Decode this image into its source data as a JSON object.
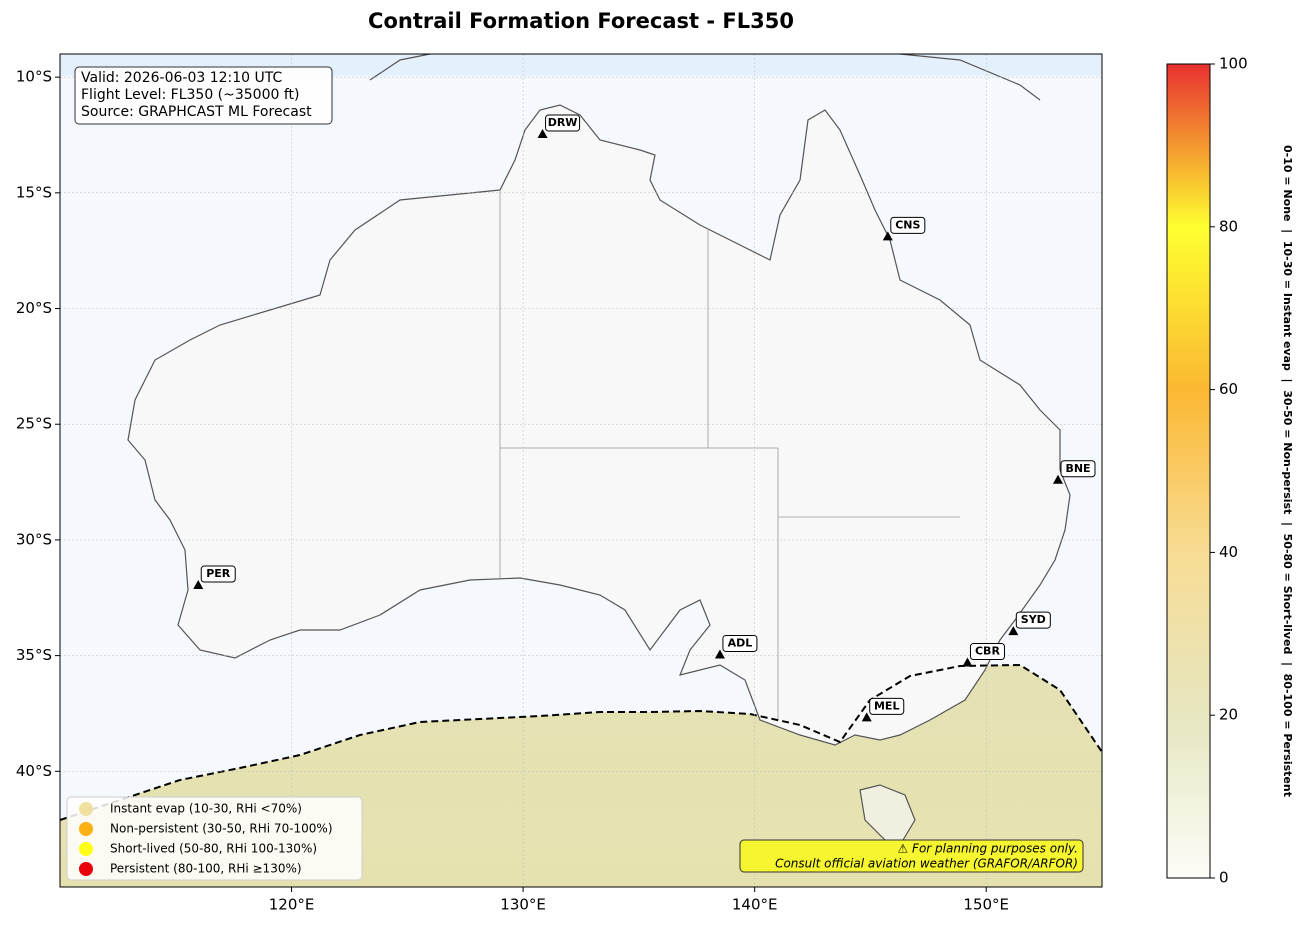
{
  "title": "Contrail Formation Forecast - FL350",
  "map": {
    "lonlim": [
      110,
      155
    ],
    "latlim": [
      -45,
      -9
    ],
    "lon_ticks": [
      {
        "value": 120,
        "label": "120°E"
      },
      {
        "value": 130,
        "label": "130°E"
      },
      {
        "value": 140,
        "label": "140°E"
      },
      {
        "value": 150,
        "label": "150°E"
      }
    ],
    "lat_ticks": [
      {
        "value": -10,
        "label": "10°S"
      },
      {
        "value": -15,
        "label": "15°S"
      },
      {
        "value": -20,
        "label": "20°S"
      },
      {
        "value": -25,
        "label": "25°S"
      },
      {
        "value": -30,
        "label": "30°S"
      },
      {
        "value": -35,
        "label": "35°S"
      },
      {
        "value": -40,
        "label": "40°S"
      }
    ]
  },
  "info": [
    "Valid: 2026-06-03 12:10 UTC",
    "Flight Level: FL350 (~35000 ft)",
    "Source: GRAPHCAST ML Forecast"
  ],
  "airports": [
    {
      "code": "DRW",
      "lon": 130.84,
      "lat": -12.46
    },
    {
      "code": "CNS",
      "lon": 145.75,
      "lat": -16.88
    },
    {
      "code": "BNE",
      "lon": 153.1,
      "lat": -27.4
    },
    {
      "code": "PER",
      "lon": 115.97,
      "lat": -31.95
    },
    {
      "code": "ADL",
      "lon": 138.5,
      "lat": -34.95
    },
    {
      "code": "SYD",
      "lon": 151.17,
      "lat": -33.94
    },
    {
      "code": "CBR",
      "lon": 149.19,
      "lat": -35.3
    },
    {
      "code": "MEL",
      "lon": 144.84,
      "lat": -37.67
    }
  ],
  "legend": [
    {
      "label": "Instant evap (10-30, RHi <70%)",
      "color": "#f0e0a0"
    },
    {
      "label": "Non-persistent (30-50, RHi 70-100%)",
      "color": "#fbb013"
    },
    {
      "label": "Short-lived (50-80, RHi 100-130%)",
      "color": "#ffff14"
    },
    {
      "label": "Persistent (80-100, RHi ≥130%)",
      "color": "#e8000b"
    }
  ],
  "disclaimer": [
    "⚠ For planning purposes only.",
    "Consult official aviation weather (GRAFOR/ARFOR)"
  ],
  "colorbar": {
    "lim": [
      0,
      100
    ],
    "ticks": [
      0,
      20,
      40,
      60,
      80,
      100
    ],
    "colors": [
      "#fdfdf8",
      "#e6e6c0",
      "#f8dc94",
      "#fbb832",
      "#ffff30",
      "#e83030"
    ],
    "label": "0-10 = None  |  10-30 = Instant evap  |  30-50 = Non-persist  |  50-80 = Short-lived  |  80-100 = Persistent"
  }
}
